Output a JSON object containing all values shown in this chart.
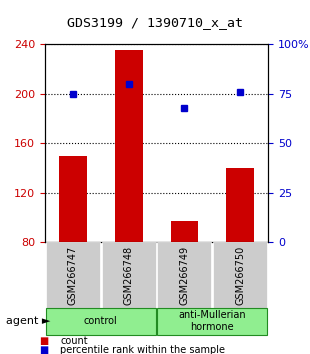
{
  "title": "GDS3199 / 1390710_x_at",
  "samples": [
    "GSM266747",
    "GSM266748",
    "GSM266749",
    "GSM266750"
  ],
  "counts": [
    150,
    235,
    97,
    140
  ],
  "percentiles": [
    75,
    80,
    68,
    76
  ],
  "bar_color": "#cc0000",
  "dot_color": "#0000cc",
  "ylim_left": [
    80,
    240
  ],
  "yticks_left": [
    80,
    120,
    160,
    200,
    240
  ],
  "ylim_right": [
    0,
    100
  ],
  "yticks_right": [
    0,
    25,
    50,
    75,
    100
  ],
  "ytick_labels_right": [
    "0",
    "25",
    "50",
    "75",
    "100%"
  ],
  "groups": [
    {
      "label": "control",
      "cols": [
        0,
        1
      ],
      "color": "#90ee90"
    },
    {
      "label": "anti-Mullerian\nhormone",
      "cols": [
        2,
        3
      ],
      "color": "#90ee90"
    }
  ],
  "agent_label": "agent",
  "legend_items": [
    {
      "color": "#cc0000",
      "label": "count"
    },
    {
      "color": "#0000cc",
      "label": "percentile rank within the sample"
    }
  ],
  "tick_bg_color": "#cccccc",
  "left_tick_color": "#cc0000",
  "right_tick_color": "#0000cc"
}
